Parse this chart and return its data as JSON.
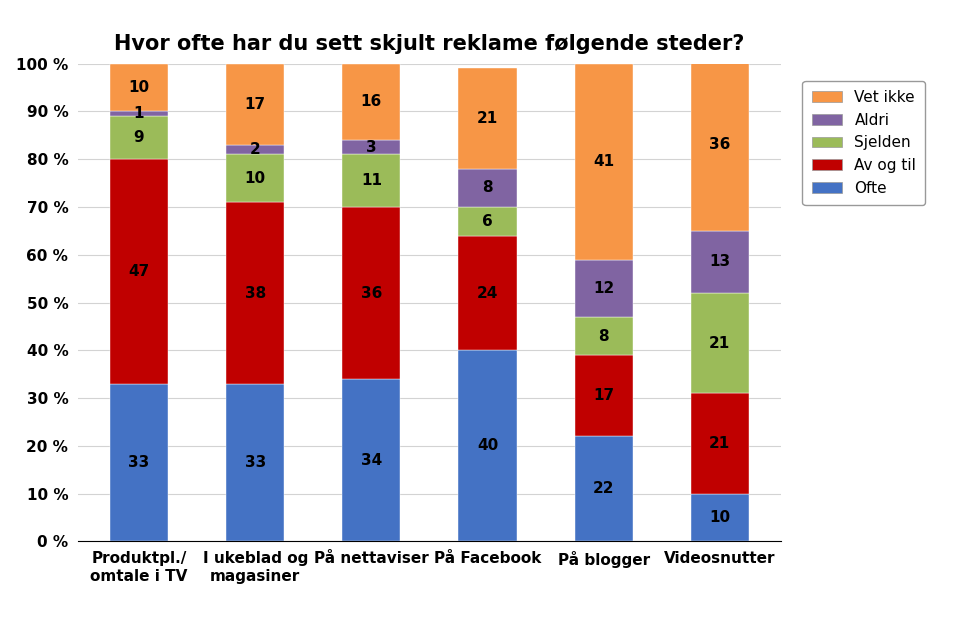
{
  "title": "Hvor ofte har du sett skjult reklame følgende steder?",
  "categories": [
    "Produktpl./\nomtale i TV",
    "I ukeblad og\nmagasiner",
    "På nettaviser",
    "På Facebook",
    "På blogger",
    "Videosnutter"
  ],
  "series": [
    {
      "label": "Ofte",
      "color": "#4472C4",
      "values": [
        33,
        33,
        34,
        40,
        22,
        10
      ]
    },
    {
      "label": "Av og til",
      "color": "#C00000",
      "values": [
        47,
        38,
        36,
        24,
        17,
        21
      ]
    },
    {
      "label": "Sjelden",
      "color": "#9BBB59",
      "values": [
        9,
        10,
        11,
        6,
        8,
        21
      ]
    },
    {
      "label": "Aldri",
      "color": "#8064A2",
      "values": [
        1,
        2,
        3,
        8,
        12,
        13
      ]
    },
    {
      "label": "Vet ikke",
      "color": "#F79646",
      "values": [
        10,
        17,
        16,
        21,
        41,
        36
      ]
    }
  ],
  "ylabel_ticks": [
    "0 %",
    "10 %",
    "20 %",
    "30 %",
    "40 %",
    "50 %",
    "60 %",
    "70 %",
    "80 %",
    "90 %",
    "100 %"
  ],
  "background_color": "#FFFFFF",
  "title_fontsize": 15,
  "label_fontsize": 11,
  "tick_fontsize": 11,
  "legend_fontsize": 11,
  "bar_width": 0.5
}
